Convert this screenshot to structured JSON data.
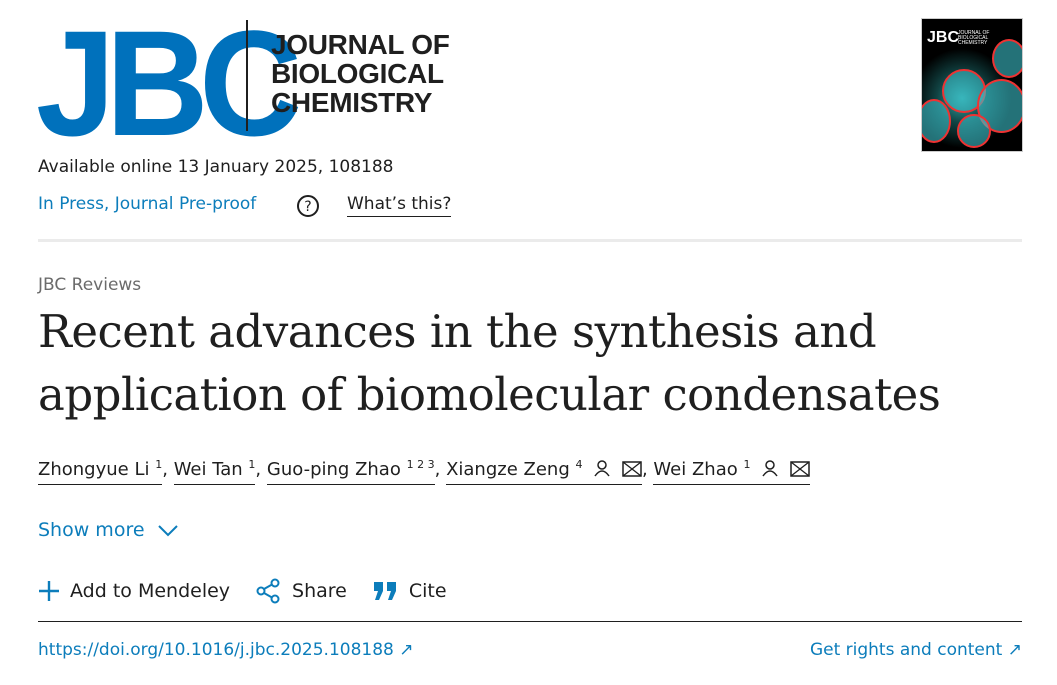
{
  "header": {
    "logo_letters": "JBC",
    "logo_text_lines": [
      "JOURNAL OF",
      "BIOLOGICAL",
      "CHEMISTRY"
    ],
    "cover_text": "JBC JOURNAL OF BIOLOGICAL CHEMISTRY ASBMB",
    "availability": "Available online 13 January 2025, 108188",
    "status": "In Press, Journal Pre-proof",
    "help_icon": "question-circle-icon",
    "whats_this": "What’s this?"
  },
  "article": {
    "section": "JBC Reviews",
    "title": "Recent advances in the synthesis and application of biomolecular condensates",
    "authors": [
      {
        "name": "Zhongyue Li",
        "aff": "1"
      },
      {
        "name": "Wei Tan",
        "aff": "1"
      },
      {
        "name": "Guo-ping Zhao",
        "aff": "1 2 3"
      },
      {
        "name": "Xiangze Zeng",
        "aff": "4",
        "icons": [
          "person-icon",
          "mail-icon"
        ]
      },
      {
        "name": "Wei Zhao",
        "aff": "1",
        "icons": [
          "person-icon",
          "mail-icon"
        ]
      }
    ],
    "separator": ",",
    "show_more": "Show more"
  },
  "actions": {
    "mendeley": "Add to Mendeley",
    "share": "Share",
    "cite": "Cite"
  },
  "links": {
    "doi": "https://doi.org/10.1016/j.jbc.2025.108188",
    "rights": "Get rights and content"
  },
  "colors": {
    "brand": "#0071bc",
    "link": "#0c7dbb",
    "text": "#1f1f1f"
  }
}
